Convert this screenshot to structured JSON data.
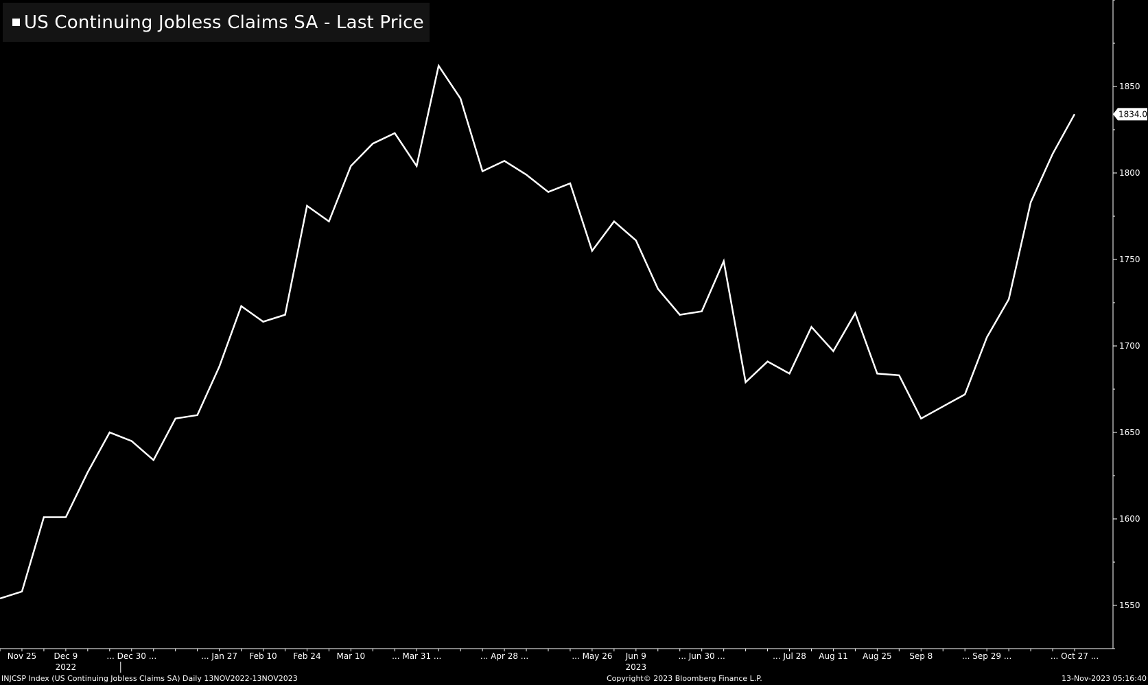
{
  "legend": {
    "label": "US Continuing Jobless Claims SA - Last Price",
    "color": "#ffffff"
  },
  "footer": {
    "left": "INJCSP Index (US Continuing Jobless Claims SA)  Daily 13NOV2022-13NOV2023",
    "center": "Copyright© 2023 Bloomberg Finance L.P.",
    "right": "13-Nov-2023 05:16:40"
  },
  "chart_data": {
    "type": "line",
    "title": "US Continuing Jobless Claims SA - Last Price",
    "ylim": [
      1525,
      1900
    ],
    "yticks": [
      1550,
      1600,
      1650,
      1700,
      1750,
      1800,
      1850
    ],
    "ytick_labels": [
      "1550",
      "1600",
      "1650",
      "1700",
      "1750",
      "1800",
      "1850"
    ],
    "last_value_label": "1834.0",
    "last_value": 1834,
    "xtick_labels": [
      "Nov 25",
      "Dec 9",
      "... Dec 30 ...",
      "... Jan 27",
      "Feb 10",
      "Feb 24",
      "Mar 10",
      "... Mar 31 ...",
      "... Apr 28 ...",
      "... May 26",
      "Jun 9",
      "... Jun 30 ...",
      "... Jul 28",
      "Aug 11",
      "Aug 25",
      "Sep 8",
      "... Sep 29 ...",
      "... Oct 27 ..."
    ],
    "year_labels": [
      "2022",
      "2023"
    ],
    "line_color": "#ffffff",
    "background": "#000000",
    "series": [
      {
        "values": [
          1554,
          1558,
          1601,
          1601,
          1627,
          1650,
          1645,
          1634,
          1658,
          1660,
          1688,
          1723,
          1714,
          1718,
          1781,
          1772,
          1804,
          1817,
          1823,
          1804,
          1862,
          1843,
          1801,
          1807,
          1799,
          1789,
          1794,
          1755,
          1772,
          1761,
          1733,
          1718,
          1720,
          1749,
          1679,
          1691,
          1684,
          1711,
          1697,
          1719,
          1684,
          1683,
          1658,
          1665,
          1672,
          1705,
          1727,
          1783,
          1811,
          1834
        ]
      }
    ]
  }
}
